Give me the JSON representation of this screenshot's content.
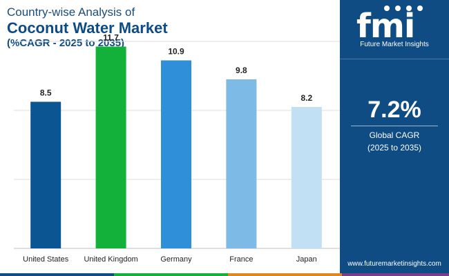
{
  "title": {
    "line1": "Country-wise Analysis of",
    "line2": "Coconut Water Market",
    "line3": "(%CAGR - 2025 to 2035)"
  },
  "chart_data": {
    "type": "bar",
    "categories": [
      "United States",
      "United Kingdom",
      "Germany",
      "France",
      "Japan"
    ],
    "values": [
      8.5,
      11.7,
      10.9,
      9.8,
      8.2
    ],
    "value_labels": [
      "8.5",
      "11.7",
      "10.9",
      "9.8",
      "8.2"
    ],
    "bar_colors": [
      "#0b5592",
      "#13b13a",
      "#2f8fd8",
      "#7dbbe6",
      "#c2e0f4"
    ],
    "ylim": [
      0,
      12
    ],
    "grid": true,
    "xlabel": "",
    "ylabel": ""
  },
  "sidebar": {
    "logo_text": "fmi",
    "logo_subtitle": "Future Market Insights",
    "cagr_value": "7.2%",
    "cagr_label": "Global CAGR",
    "cagr_period": "(2025 to 2035)",
    "website": "www.futuremarketinsights.com"
  },
  "colors": {
    "sidebar_bg": "#0f4c84",
    "title_color": "#0d4a86",
    "gridline": "#dddddd",
    "strip": [
      "#0f4c84",
      "#13b13a",
      "#e0861f",
      "#7a3d8c"
    ]
  }
}
